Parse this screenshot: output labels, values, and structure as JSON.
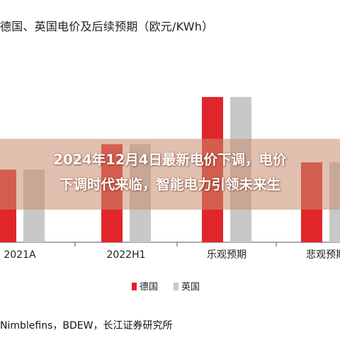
{
  "chart_data": {
    "type": "bar",
    "title": "德国、英国电价及后续预期（欧元/KWh）",
    "categories": [
      "2021A",
      "2022H1",
      "乐观预期",
      "悲观预期"
    ],
    "series": [
      {
        "name": "德国",
        "values": [
          0.2,
          0.27,
          0.4,
          0.22
        ]
      },
      {
        "name": "英国",
        "values": [
          0.2,
          0.27,
          0.4,
          0.22
        ]
      }
    ],
    "ylim": [
      0,
      0.55
    ],
    "grid": false,
    "legend_position": "bottom",
    "colors": {
      "德国": "#e0262b",
      "英国": "#c8c8c8"
    }
  },
  "banner": {
    "line1": "2024年12月4日最新电价下调，电价",
    "line2": "下调时代来临，智能电力引领未来生"
  },
  "source": "Nimblefins，BDEW，长江证券研究所"
}
